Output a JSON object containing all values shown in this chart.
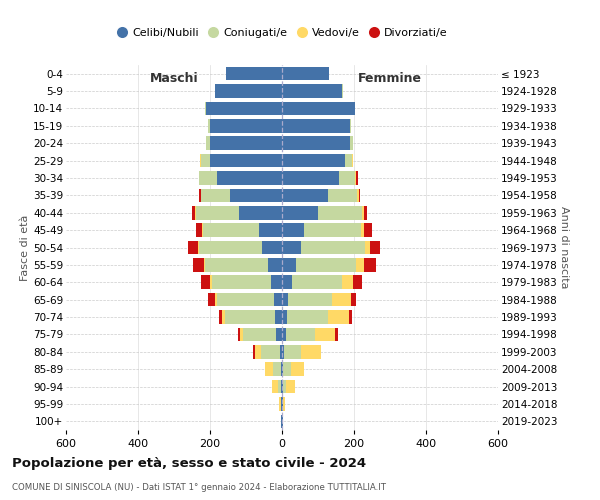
{
  "age_groups": [
    "0-4",
    "5-9",
    "10-14",
    "15-19",
    "20-24",
    "25-29",
    "30-34",
    "35-39",
    "40-44",
    "45-49",
    "50-54",
    "55-59",
    "60-64",
    "65-69",
    "70-74",
    "75-79",
    "80-84",
    "85-89",
    "90-94",
    "95-99",
    "100+"
  ],
  "birth_years": [
    "2019-2023",
    "2014-2018",
    "2009-2013",
    "2004-2008",
    "1999-2003",
    "1994-1998",
    "1989-1993",
    "1984-1988",
    "1979-1983",
    "1974-1978",
    "1969-1973",
    "1964-1968",
    "1959-1963",
    "1954-1958",
    "1949-1953",
    "1944-1948",
    "1939-1943",
    "1934-1938",
    "1929-1933",
    "1924-1928",
    "≤ 1923"
  ],
  "colors": {
    "celibi": "#4472a8",
    "coniugati": "#c5d8a0",
    "vedovi": "#ffd966",
    "divorziati": "#cc1111"
  },
  "male": {
    "celibi": [
      155,
      185,
      210,
      200,
      200,
      200,
      180,
      145,
      120,
      65,
      55,
      40,
      30,
      22,
      20,
      16,
      6,
      4,
      2,
      2,
      2
    ],
    "coniugati": [
      0,
      2,
      3,
      5,
      10,
      25,
      50,
      80,
      120,
      155,
      175,
      175,
      165,
      158,
      138,
      92,
      52,
      22,
      8,
      2,
      0
    ],
    "vedovi": [
      0,
      0,
      0,
      0,
      0,
      2,
      0,
      0,
      1,
      2,
      2,
      3,
      5,
      5,
      8,
      10,
      18,
      22,
      18,
      5,
      0
    ],
    "divorziati": [
      0,
      0,
      0,
      0,
      0,
      0,
      0,
      5,
      10,
      18,
      28,
      28,
      25,
      20,
      10,
      5,
      5,
      0,
      0,
      0,
      0
    ]
  },
  "female": {
    "nubili": [
      130,
      168,
      202,
      188,
      188,
      175,
      158,
      128,
      100,
      62,
      52,
      38,
      28,
      18,
      15,
      10,
      5,
      4,
      2,
      2,
      2
    ],
    "coniugate": [
      0,
      2,
      2,
      4,
      10,
      20,
      45,
      80,
      122,
      158,
      178,
      168,
      138,
      122,
      112,
      82,
      48,
      20,
      8,
      2,
      0
    ],
    "vedove": [
      0,
      0,
      0,
      0,
      0,
      2,
      2,
      5,
      5,
      8,
      14,
      22,
      32,
      52,
      58,
      55,
      55,
      38,
      25,
      5,
      0
    ],
    "divorziate": [
      0,
      0,
      0,
      0,
      0,
      0,
      5,
      5,
      10,
      22,
      28,
      32,
      24,
      14,
      10,
      8,
      0,
      0,
      0,
      0,
      0
    ]
  },
  "xlim": 600,
  "title": "Popolazione per età, sesso e stato civile - 2024",
  "subtitle": "COMUNE DI SINISCOLA (NU) - Dati ISTAT 1° gennaio 2024 - Elaborazione TUTTITALIA.IT",
  "ylabel": "Fasce di età",
  "ylabel_right": "Anni di nascita",
  "xlabel_left": "Maschi",
  "xlabel_right": "Femmine",
  "legend_labels": [
    "Celibi/Nubili",
    "Coniugati/e",
    "Vedovi/e",
    "Divorziati/e"
  ]
}
